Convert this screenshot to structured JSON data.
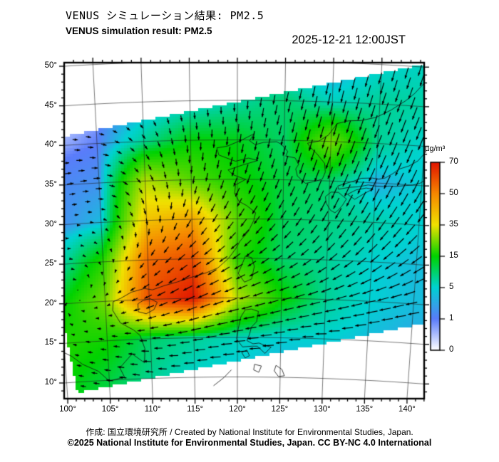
{
  "header": {
    "title_jp": "VENUS シミュレーション結果: PM2.5",
    "subtitle_en": "VENUS simulation result: PM2.5",
    "datetime": "2025-12-21 12:00JST"
  },
  "footer": {
    "credit": "作成: 国立環境研究所 / Created by National Institute for Environmental Studies, Japan.",
    "copyright": "©2025 National Institute for Environmental Studies, Japan. CC BY-NC 4.0 International"
  },
  "colorbar": {
    "unit": "µg/m³",
    "tick_labels": [
      "70",
      "50",
      "35",
      "15",
      "5",
      "1",
      "0"
    ],
    "stops": [
      {
        "value": 0,
        "color": "#ffffff"
      },
      {
        "value": 1,
        "color": "#5a7cfa"
      },
      {
        "value": 5,
        "color": "#00d2d2"
      },
      {
        "value": 15,
        "color": "#00d200"
      },
      {
        "value": 35,
        "color": "#f0e100"
      },
      {
        "value": 50,
        "color": "#f58700"
      },
      {
        "value": 70,
        "color": "#e11400"
      }
    ]
  },
  "map": {
    "lat_ticks": [
      {
        "label": "50°",
        "value": 50
      },
      {
        "label": "45°",
        "value": 45
      },
      {
        "label": "40°",
        "value": 40
      },
      {
        "label": "35°",
        "value": 35
      },
      {
        "label": "30°",
        "value": 30
      },
      {
        "label": "25°",
        "value": 25
      },
      {
        "label": "20°",
        "value": 20
      },
      {
        "label": "15°",
        "value": 15
      },
      {
        "label": "10°",
        "value": 10
      }
    ],
    "lon_ticks": [
      {
        "label": "100°",
        "value": 100
      },
      {
        "label": "105°",
        "value": 105
      },
      {
        "label": "110°",
        "value": 110
      },
      {
        "label": "115°",
        "value": 115
      },
      {
        "label": "120°",
        "value": 120
      },
      {
        "label": "125°",
        "value": 125
      },
      {
        "label": "130°",
        "value": 130
      },
      {
        "label": "135°",
        "value": 135
      },
      {
        "label": "140°",
        "value": 140
      }
    ],
    "coastlines": [
      [
        [
          100,
          13.8
        ],
        [
          100.8,
          13.3
        ],
        [
          102,
          12.2
        ],
        [
          103.8,
          11.2
        ],
        [
          105,
          9.9
        ],
        [
          106.8,
          10.3
        ],
        [
          106.3,
          11.5
        ],
        [
          107.8,
          13.2
        ],
        [
          109.2,
          12.0
        ],
        [
          109.3,
          13.8
        ],
        [
          108.8,
          15.5
        ],
        [
          108.1,
          16.2
        ],
        [
          106.6,
          17.2
        ],
        [
          105.8,
          18.8
        ],
        [
          105.9,
          19.9
        ],
        [
          106.8,
          20.3
        ],
        [
          108.0,
          21.0
        ],
        [
          109.5,
          21.4
        ],
        [
          110.4,
          21.2
        ],
        [
          111.8,
          21.7
        ],
        [
          113.2,
          22.1
        ],
        [
          114.3,
          22.5
        ],
        [
          116.5,
          23.2
        ],
        [
          117.8,
          23.8
        ],
        [
          119.0,
          25.0
        ],
        [
          119.8,
          26.2
        ],
        [
          120.3,
          27.2
        ],
        [
          121.2,
          28.4
        ],
        [
          121.8,
          29.8
        ],
        [
          122.0,
          30.8
        ],
        [
          121.0,
          31.7
        ],
        [
          120.2,
          32.2
        ],
        [
          119.7,
          33.2
        ],
        [
          119.8,
          34.3
        ],
        [
          120.9,
          35.0
        ],
        [
          119.5,
          35.6
        ],
        [
          119.0,
          36.2
        ],
        [
          120.5,
          36.8
        ],
        [
          122.2,
          37.4
        ],
        [
          121.2,
          37.7
        ],
        [
          119.8,
          37.3
        ],
        [
          119.1,
          37.6
        ],
        [
          118.0,
          38.1
        ],
        [
          117.8,
          39.0
        ],
        [
          118.9,
          39.2
        ],
        [
          120.5,
          40.0
        ],
        [
          121.8,
          40.8
        ],
        [
          121.3,
          39.9
        ],
        [
          121.9,
          39.4
        ],
        [
          122.8,
          39.7
        ],
        [
          124.2,
          39.8
        ]
      ],
      [
        [
          124.2,
          39.8
        ],
        [
          124.7,
          39.5
        ],
        [
          125.4,
          38.6
        ],
        [
          125.2,
          38.0
        ],
        [
          126.2,
          37.8
        ],
        [
          126.6,
          37.0
        ],
        [
          126.3,
          36.4
        ],
        [
          126.5,
          35.5
        ],
        [
          127.4,
          34.6
        ],
        [
          128.4,
          34.9
        ],
        [
          129.2,
          35.2
        ],
        [
          129.5,
          36.1
        ],
        [
          129.4,
          37.2
        ],
        [
          128.6,
          38.3
        ],
        [
          127.8,
          39.2
        ],
        [
          127.5,
          39.7
        ],
        [
          128.7,
          40.0
        ],
        [
          129.7,
          40.8
        ],
        [
          130.6,
          42.3
        ],
        [
          131.8,
          42.7
        ],
        [
          133.1,
          42.8
        ],
        [
          134.7,
          43.3
        ],
        [
          136.2,
          44.3
        ],
        [
          137.7,
          45.6
        ],
        [
          138.6,
          46.6
        ],
        [
          139.8,
          48.4
        ],
        [
          140.5,
          50.0
        ]
      ],
      [
        [
          139.8,
          35.3
        ],
        [
          139.0,
          35.0
        ],
        [
          138.3,
          34.9
        ],
        [
          137.2,
          34.7
        ],
        [
          136.5,
          34.7
        ],
        [
          135.8,
          34.6
        ],
        [
          135.1,
          34.6
        ],
        [
          134.2,
          34.7
        ],
        [
          133.1,
          34.4
        ],
        [
          132.2,
          34.3
        ],
        [
          131.0,
          34.0
        ],
        [
          130.9,
          34.4
        ],
        [
          131.6,
          34.7
        ],
        [
          132.6,
          35.1
        ],
        [
          133.4,
          35.5
        ],
        [
          134.6,
          35.6
        ],
        [
          135.3,
          35.5
        ],
        [
          136.0,
          35.7
        ],
        [
          136.8,
          36.3
        ],
        [
          137.4,
          36.9
        ],
        [
          138.5,
          37.4
        ],
        [
          139.4,
          38.1
        ],
        [
          140.0,
          39.0
        ],
        [
          140.0,
          40.4
        ],
        [
          140.8,
          41.2
        ],
        [
          141.3,
          41.3
        ],
        [
          141.5,
          40.5
        ],
        [
          141.8,
          39.2
        ],
        [
          141.6,
          38.3
        ],
        [
          140.9,
          37.9
        ],
        [
          141.0,
          36.8
        ],
        [
          140.6,
          36.0
        ],
        [
          139.8,
          35.3
        ]
      ],
      [
        [
          130.2,
          33.6
        ],
        [
          129.6,
          33.0
        ],
        [
          129.7,
          32.2
        ],
        [
          130.2,
          31.3
        ],
        [
          130.7,
          31.0
        ],
        [
          131.1,
          31.4
        ],
        [
          131.5,
          32.0
        ],
        [
          131.9,
          32.8
        ],
        [
          131.0,
          33.6
        ],
        [
          130.2,
          33.6
        ]
      ],
      [
        [
          132.0,
          33.4
        ],
        [
          132.8,
          32.8
        ],
        [
          133.7,
          33.5
        ],
        [
          134.7,
          34.2
        ],
        [
          134.0,
          34.3
        ],
        [
          132.9,
          34.0
        ],
        [
          132.0,
          33.4
        ]
      ],
      [
        [
          140.4,
          42.6
        ],
        [
          141.1,
          41.8
        ],
        [
          142.0,
          42.1
        ],
        [
          143.2,
          42.0
        ],
        [
          143.9,
          42.9
        ],
        [
          145.3,
          43.3
        ],
        [
          145.0,
          44.2
        ],
        [
          143.8,
          44.1
        ],
        [
          142.6,
          43.9
        ],
        [
          141.6,
          43.3
        ],
        [
          140.4,
          42.6
        ]
      ],
      [
        [
          120.1,
          23.1
        ],
        [
          120.8,
          22.0
        ],
        [
          121.6,
          22.4
        ],
        [
          121.9,
          24.0
        ],
        [
          121.6,
          25.1
        ],
        [
          120.9,
          25.3
        ],
        [
          120.1,
          23.1
        ]
      ],
      [
        [
          108.7,
          18.5
        ],
        [
          109.6,
          18.2
        ],
        [
          110.5,
          18.7
        ],
        [
          110.9,
          19.6
        ],
        [
          110.1,
          20.1
        ],
        [
          109.3,
          19.9
        ],
        [
          108.7,
          19.5
        ],
        [
          108.7,
          18.5
        ]
      ],
      [
        [
          120.1,
          16.1
        ],
        [
          119.9,
          14.8
        ],
        [
          120.6,
          13.8
        ],
        [
          121.7,
          13.9
        ],
        [
          122.3,
          13.9
        ],
        [
          123.2,
          13.0
        ],
        [
          123.9,
          13.8
        ],
        [
          123.2,
          14.0
        ],
        [
          122.5,
          14.3
        ],
        [
          121.8,
          14.2
        ],
        [
          121.1,
          14.6
        ],
        [
          121.4,
          15.4
        ],
        [
          121.6,
          16.3
        ],
        [
          122.2,
          17.0
        ],
        [
          122.4,
          18.3
        ],
        [
          121.6,
          18.6
        ],
        [
          120.9,
          18.5
        ],
        [
          120.4,
          17.6
        ],
        [
          120.1,
          16.1
        ]
      ],
      [
        [
          121.1,
          13.4
        ],
        [
          120.5,
          13.1
        ],
        [
          120.9,
          12.4
        ],
        [
          121.4,
          12.7
        ],
        [
          121.1,
          13.4
        ]
      ],
      [
        [
          122.0,
          11.6
        ],
        [
          122.8,
          11.4
        ],
        [
          122.5,
          10.6
        ],
        [
          121.9,
          10.9
        ],
        [
          122.0,
          11.6
        ]
      ],
      [
        [
          124.5,
          11.5
        ],
        [
          125.2,
          11.0
        ],
        [
          125.5,
          10.2
        ],
        [
          124.8,
          10.1
        ],
        [
          124.3,
          10.8
        ],
        [
          124.5,
          11.5
        ]
      ],
      [
        [
          117.2,
          8.9
        ],
        [
          118.4,
          9.9
        ],
        [
          119.3,
          10.9
        ]
      ],
      [
        [
          141.9,
          46.0
        ],
        [
          142.6,
          46.8
        ],
        [
          142.8,
          48.3
        ],
        [
          142.5,
          49.5
        ],
        [
          142.2,
          50.5
        ]
      ]
    ]
  },
  "chart_data": {
    "type": "heatmap",
    "title": "VENUS simulation result: PM2.5",
    "datetime": "2025-12-21 12:00JST",
    "units": "µg/m³",
    "lon_axis": [
      100,
      105,
      110,
      115,
      120,
      125,
      130,
      135,
      140
    ],
    "lat_axis": [
      50,
      45,
      40,
      35,
      30,
      25,
      20,
      15,
      10
    ],
    "value_scale_ticks": [
      0,
      1,
      5,
      15,
      35,
      50,
      70
    ],
    "pm25_grid": [
      [
        0,
        0,
        0.5,
        1,
        3,
        2,
        2,
        5,
        6
      ],
      [
        0,
        0.5,
        2,
        4,
        7,
        10,
        6,
        8,
        7
      ],
      [
        0.5,
        1,
        8,
        15,
        14,
        10,
        25,
        8,
        5
      ],
      [
        1.5,
        2,
        30,
        22,
        16,
        12,
        10,
        3,
        5
      ],
      [
        1.5,
        4,
        40,
        45,
        22,
        11,
        9,
        7,
        5
      ],
      [
        6,
        18,
        55,
        60,
        18,
        10,
        8,
        5,
        4
      ],
      [
        14,
        25,
        60,
        70,
        30,
        16,
        8,
        5,
        4
      ],
      [
        18,
        16,
        10,
        8,
        6,
        5,
        5,
        4,
        3
      ],
      [
        15,
        12,
        8,
        5,
        4,
        3,
        3,
        2,
        2
      ]
    ],
    "wind_uv_grid": [
      [
        [
          0.6,
          -0.3
        ],
        [
          0.8,
          -0.5
        ],
        [
          0.6,
          -1
        ],
        [
          0.3,
          -1.5
        ],
        [
          0,
          -2.5
        ],
        [
          -0.5,
          -3.5
        ],
        [
          -0.8,
          -4.5
        ],
        [
          -1,
          -5
        ],
        [
          -1.2,
          -5
        ]
      ],
      [
        [
          1.5,
          -0.3
        ],
        [
          1.5,
          -0.8
        ],
        [
          1,
          -1.5
        ],
        [
          0.5,
          -2.5
        ],
        [
          0,
          -3.5
        ],
        [
          -1,
          -4.5
        ],
        [
          -1,
          -5.5
        ],
        [
          -1.5,
          -5.5
        ],
        [
          -1.8,
          -5.5
        ]
      ],
      [
        [
          2.5,
          0
        ],
        [
          2.5,
          -0.5
        ],
        [
          1.5,
          -2
        ],
        [
          0,
          -3.5
        ],
        [
          -0.5,
          -4
        ],
        [
          -1,
          -4.5
        ],
        [
          -1.5,
          -5.5
        ],
        [
          -2,
          -6
        ],
        [
          -2,
          -6
        ]
      ],
      [
        [
          3,
          0.5
        ],
        [
          3,
          0
        ],
        [
          1.5,
          -2.5
        ],
        [
          -0.5,
          -3.5
        ],
        [
          -1.5,
          -4
        ],
        [
          -1.5,
          -4.5
        ],
        [
          -2,
          -5.5
        ],
        [
          -2.5,
          -6
        ],
        [
          -2.5,
          -6
        ]
      ],
      [
        [
          1.5,
          0.5
        ],
        [
          1.5,
          -0.5
        ],
        [
          0.5,
          -3
        ],
        [
          -2,
          -3.5
        ],
        [
          -2.5,
          -3.5
        ],
        [
          -2.5,
          -3.5
        ],
        [
          -2.5,
          -4.5
        ],
        [
          -3,
          -5
        ],
        [
          -3.5,
          -5
        ]
      ],
      [
        [
          1,
          0
        ],
        [
          0.5,
          -1
        ],
        [
          -2,
          -2.5
        ],
        [
          -3.5,
          -2.5
        ],
        [
          -3.5,
          -2.5
        ],
        [
          -3.5,
          -2.5
        ],
        [
          -3.5,
          -3
        ],
        [
          -4,
          -3.5
        ],
        [
          -4.5,
          -3.5
        ]
      ],
      [
        [
          0.5,
          0.5
        ],
        [
          -1,
          -0.5
        ],
        [
          -3.5,
          -1.5
        ],
        [
          -4.5,
          -2
        ],
        [
          -4.5,
          -1.5
        ],
        [
          -4.5,
          -1.5
        ],
        [
          -4.5,
          -1.5
        ],
        [
          -5,
          -1.5
        ],
        [
          -5,
          -1.5
        ]
      ],
      [
        [
          -1.5,
          0.5
        ],
        [
          -2.5,
          0.5
        ],
        [
          -3.5,
          0
        ],
        [
          -4.5,
          -0.5
        ],
        [
          -5,
          -0.5
        ],
        [
          -5,
          -0.5
        ],
        [
          -5,
          0
        ],
        [
          -5,
          -0.5
        ],
        [
          -5,
          -0.5
        ]
      ],
      [
        [
          -2,
          0.5
        ],
        [
          -3,
          0.5
        ],
        [
          -3.5,
          0.5
        ],
        [
          -4.5,
          0
        ],
        [
          -5,
          0
        ],
        [
          -5,
          0
        ],
        [
          -5,
          0
        ],
        [
          -5,
          0
        ],
        [
          -5,
          0
        ]
      ]
    ]
  }
}
